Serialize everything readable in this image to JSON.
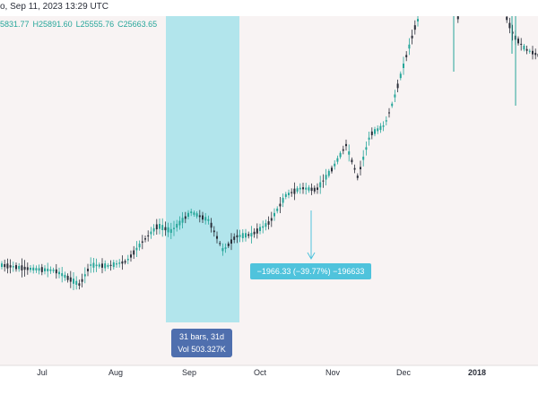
{
  "header": {
    "date_text": "o, Sep 11, 2023 13:29 UTC",
    "ohlc": {
      "open": "5831.77",
      "high": "H25891.60",
      "low": "L25555.76",
      "close": "C25663.65"
    }
  },
  "measure": {
    "bars_label": "31 bars, 31d",
    "vol_label": "Vol 503.327K",
    "change_label": "−1966.33 (−39.77%) −196633"
  },
  "x_axis": {
    "labels": [
      "Jul",
      "Aug",
      "Sep",
      "Oct",
      "Nov",
      "Dec",
      "2018"
    ]
  },
  "colors": {
    "up": "#26a69a",
    "down": "#2a2e39",
    "plot_bg": "#f8f3f3",
    "range_fill": "#b2e5ec",
    "arrow": "#4fc3dc",
    "bars_box": "#4f6fae",
    "measure_box": "#4fc3dc"
  }
}
